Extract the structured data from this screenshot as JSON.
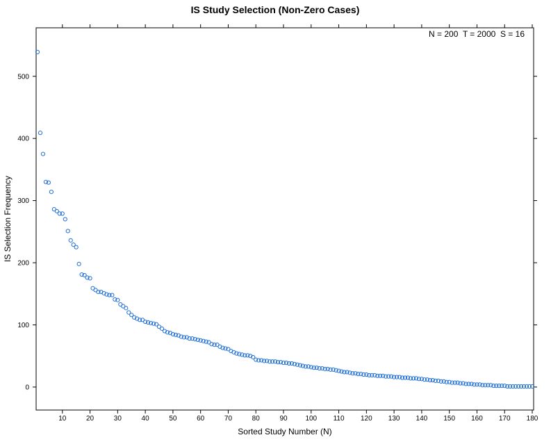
{
  "chart_data": {
    "type": "scatter",
    "title": "IS Study Selection (Non-Zero Cases)",
    "xlabel": "Sorted Study Number (N)",
    "ylabel": "IS Selection Frequency",
    "annotation": "N = 200  T = 2000  S = 16",
    "xlim": [
      0.5,
      180.5
    ],
    "ylim": [
      -37,
      578
    ],
    "x_ticks": [
      10,
      20,
      30,
      40,
      50,
      60,
      70,
      80,
      90,
      100,
      110,
      120,
      130,
      140,
      150,
      160,
      170,
      180
    ],
    "y_ticks": [
      0,
      100,
      200,
      300,
      400,
      500
    ],
    "grid": false,
    "marker": "open-circle",
    "point_color": "#1f6fd6",
    "values": [
      539,
      409,
      375,
      330,
      329,
      314,
      286,
      283,
      279,
      279,
      270,
      251,
      236,
      229,
      225,
      198,
      181,
      180,
      176,
      175,
      159,
      156,
      153,
      153,
      151,
      149,
      148,
      148,
      141,
      140,
      133,
      130,
      127,
      120,
      116,
      112,
      110,
      108,
      108,
      105,
      104,
      103,
      102,
      101,
      97,
      94,
      90,
      88,
      87,
      85,
      84,
      83,
      81,
      80,
      80,
      78,
      78,
      77,
      76,
      75,
      74,
      73,
      72,
      69,
      68,
      68,
      65,
      63,
      62,
      61,
      58,
      56,
      54,
      53,
      52,
      51,
      51,
      50,
      48,
      44,
      43,
      43,
      42,
      42,
      41,
      41,
      41,
      40,
      40,
      39,
      39,
      38,
      38,
      37,
      36,
      35,
      34,
      33,
      33,
      32,
      31,
      31,
      30,
      30,
      29,
      29,
      28,
      28,
      27,
      26,
      25,
      24,
      24,
      23,
      22,
      22,
      21,
      21,
      20,
      20,
      19,
      19,
      19,
      18,
      18,
      18,
      17,
      17,
      17,
      16,
      16,
      16,
      15,
      15,
      15,
      14,
      14,
      14,
      13,
      13,
      12,
      12,
      11,
      11,
      10,
      10,
      9,
      9,
      8,
      8,
      7,
      7,
      7,
      6,
      6,
      5,
      5,
      5,
      4,
      4,
      4,
      3,
      3,
      3,
      3,
      2,
      2,
      2,
      2,
      2,
      1,
      1,
      1,
      1,
      1,
      1,
      1,
      1,
      1,
      1
    ]
  }
}
